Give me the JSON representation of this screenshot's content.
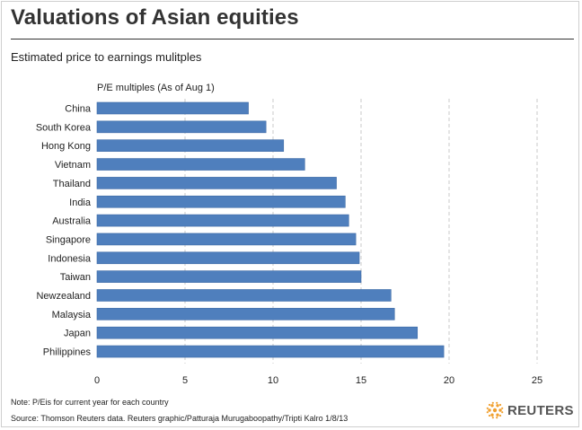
{
  "header": {
    "title": "Valuations of Asian equities",
    "subtitle": "Estimated price to earnings mulitples"
  },
  "footer": {
    "note": "Note: P/Eis for current year for each country",
    "source": "Source: Thomson Reuters data.  Reuters graphic/Patturaja Murugaboopathy/Tripti Kalro 1/8/13",
    "logo_text": "REUTERS"
  },
  "colors": {
    "bar": "#4f7fbd",
    "bar_edge": "#3d6aa5",
    "grid": "#c8c8c8",
    "logo": "#f0a030"
  },
  "chart_data": {
    "type": "bar",
    "orientation": "horizontal",
    "title": "P/E multiples (As of Aug 1)",
    "categories": [
      "China",
      "South Korea",
      "Hong Kong",
      "Vietnam",
      "Thailand",
      "India",
      "Australia",
      "Singapore",
      "Indonesia",
      "Taiwan",
      "Newzealand",
      "Malaysia",
      "Japan",
      "Philippines"
    ],
    "values": [
      8.6,
      9.6,
      10.6,
      11.8,
      13.6,
      14.1,
      14.3,
      14.7,
      14.9,
      15.0,
      16.7,
      16.9,
      18.2,
      19.7
    ],
    "xlim": [
      0,
      25
    ],
    "xticks": [
      0,
      5,
      10,
      15,
      20,
      25
    ],
    "grid": "vertical dashed",
    "legend": "none"
  }
}
